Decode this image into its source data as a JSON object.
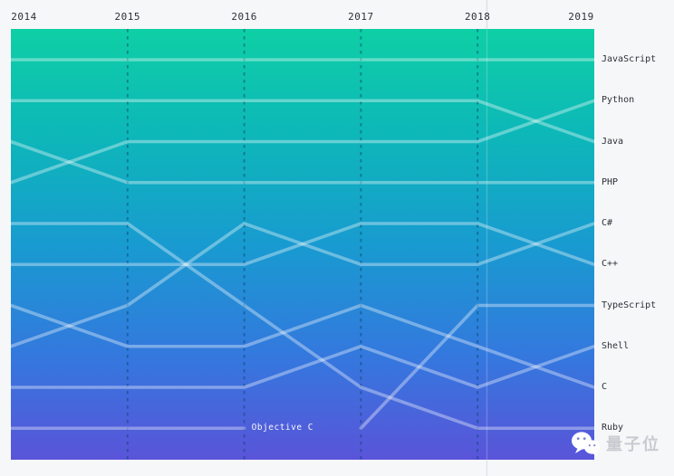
{
  "page": {
    "background": "#f6f7f9"
  },
  "chart_data": {
    "type": "bump",
    "description_hint": "Top programming language rankings over time (rank 1 = top)",
    "years": [
      "2014",
      "2015",
      "2016",
      "2017",
      "2018",
      "2019"
    ],
    "rank_count": 10,
    "legend_position": "right",
    "grid": "dashed-vertical-year-lines",
    "series": [
      {
        "name": "JavaScript",
        "ranks": [
          1,
          1,
          1,
          1,
          1,
          1
        ]
      },
      {
        "name": "Python",
        "ranks": [
          4,
          3,
          3,
          3,
          3,
          2
        ]
      },
      {
        "name": "Java",
        "ranks": [
          2,
          2,
          2,
          2,
          2,
          3
        ]
      },
      {
        "name": "PHP",
        "ranks": [
          3,
          4,
          4,
          4,
          4,
          4
        ]
      },
      {
        "name": "C#",
        "ranks": [
          8,
          7,
          5,
          6,
          6,
          5
        ]
      },
      {
        "name": "C++",
        "ranks": [
          6,
          6,
          6,
          5,
          5,
          6
        ]
      },
      {
        "name": "TypeScript",
        "ranks": [
          null,
          null,
          null,
          10,
          7,
          7
        ]
      },
      {
        "name": "Shell",
        "ranks": [
          9,
          9,
          9,
          8,
          9,
          8
        ]
      },
      {
        "name": "C",
        "ranks": [
          7,
          8,
          8,
          7,
          8,
          9
        ]
      },
      {
        "name": "Ruby",
        "ranks": [
          5,
          5,
          7,
          9,
          10,
          10
        ]
      },
      {
        "name": "Objective C",
        "ranks": [
          10,
          10,
          10,
          null,
          null,
          null
        ]
      }
    ],
    "inline_label": {
      "text": "Objective C",
      "year": "2016",
      "rank": 10
    },
    "colors": {
      "gradient_top": "#0ecfa5",
      "gradient_upper_mid": "#0db8b8",
      "gradient_mid": "#189bd0",
      "gradient_lower_mid": "#3478de",
      "gradient_bottom": "#5a54d9",
      "series_line": "rgba(255,255,255,0.36)",
      "year_gridline": "rgba(8,64,109,0.5)",
      "label_text": "#2b3137",
      "inline_label_text": "rgba(255,255,255,0.95)"
    }
  },
  "watermark": {
    "brand": "量子位",
    "icon": "wechat-icon"
  }
}
